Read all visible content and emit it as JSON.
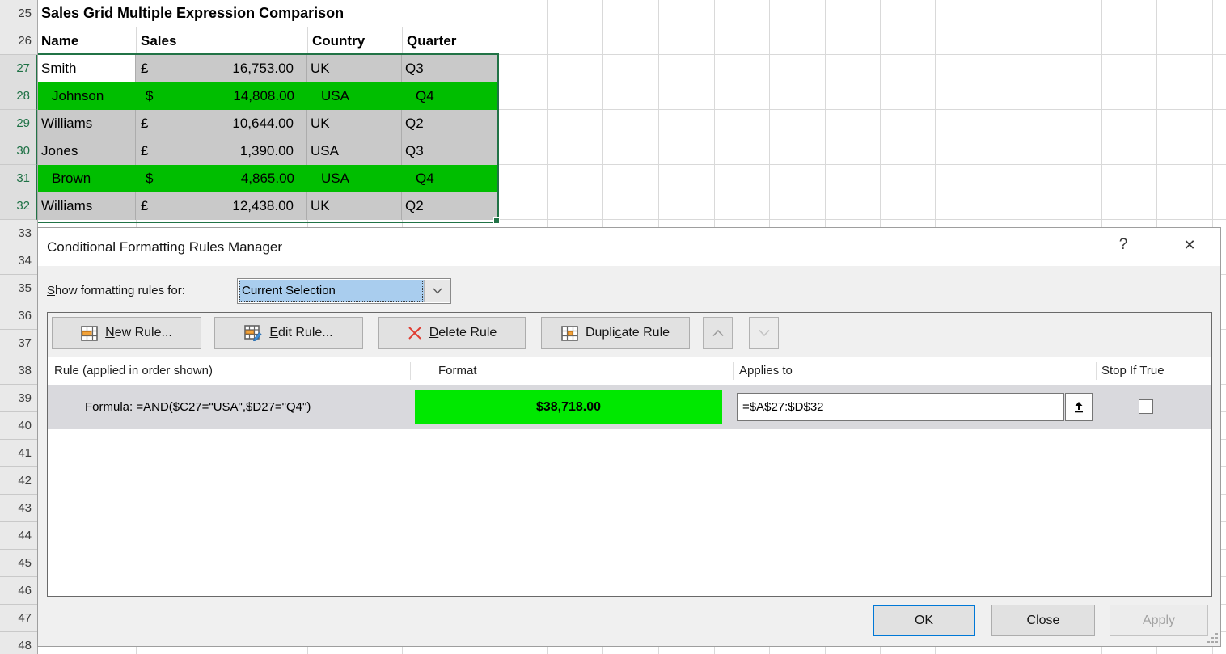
{
  "spreadsheet": {
    "title": "Sales Grid Multiple Expression Comparison",
    "columns": [
      "Name",
      "Sales",
      "Country",
      "Quarter"
    ],
    "rows": [
      {
        "num": 27,
        "name": "Smith",
        "cur": "£",
        "amount": "16,753.00",
        "country": "UK",
        "quarter": "Q3",
        "style": "selected",
        "active": true
      },
      {
        "num": 28,
        "name": "Johnson",
        "cur": "$",
        "amount": "14,808.00",
        "country": "USA",
        "quarter": "Q4",
        "style": "green"
      },
      {
        "num": 29,
        "name": "Williams",
        "cur": "£",
        "amount": "10,644.00",
        "country": "UK",
        "quarter": "Q2",
        "style": "selected"
      },
      {
        "num": 30,
        "name": "Jones",
        "cur": "£",
        "amount": "1,390.00",
        "country": "USA",
        "quarter": "Q3",
        "style": "selected"
      },
      {
        "num": 31,
        "name": "Brown",
        "cur": "$",
        "amount": "4,865.00",
        "country": "USA",
        "quarter": "Q4",
        "style": "green"
      },
      {
        "num": 32,
        "name": "Williams",
        "cur": "£",
        "amount": "12,438.00",
        "country": "UK",
        "quarter": "Q2",
        "style": "selected"
      }
    ],
    "row_numbers": [
      25,
      26,
      27,
      28,
      29,
      30,
      31,
      32,
      33,
      34,
      35,
      36,
      37,
      38,
      39,
      40,
      41,
      42,
      43,
      44,
      45,
      46,
      47,
      48
    ],
    "selected_rows": {
      "first": 27,
      "last": 32
    }
  },
  "dialog": {
    "title": "Conditional Formatting Rules Manager",
    "icons": {
      "help": "?",
      "close": "✕"
    },
    "show_rules_label": {
      "text": "Show formatting rules for:",
      "accel": 0
    },
    "scope_value": "Current Selection",
    "toolbar": {
      "new_rule": {
        "text": "New Rule...",
        "accel": 0
      },
      "edit_rule": {
        "text": "Edit Rule...",
        "accel": 0
      },
      "delete_rule": {
        "text": "Delete Rule",
        "accel": 0
      },
      "duplicate_rule": {
        "text": "Duplicate Rule",
        "accel": 5
      }
    },
    "list_headers": {
      "rule": "Rule (applied in order shown)",
      "format": "Format",
      "applies_to": "Applies to",
      "stop_if_true": "Stop If True"
    },
    "rule": {
      "description": "Formula: =AND($C27=\"USA\",$D27=\"Q4\")",
      "format_preview": "$38,718.00",
      "applies_to": "=$A$27:$D$32",
      "stop_if_true_checked": false
    },
    "buttons": {
      "ok": "OK",
      "close": "Close",
      "apply": "Apply"
    }
  },
  "colors": {
    "accent": "#0078D7",
    "green_fill": "#00BE00",
    "green_preview": "#00E800",
    "selection_gray": "#C9C9C9",
    "selection_border": "#217346",
    "combo_highlight": "#A9CDEE",
    "dialog_bg": "#F0F0F0",
    "button_face": "#E1E1E1"
  }
}
